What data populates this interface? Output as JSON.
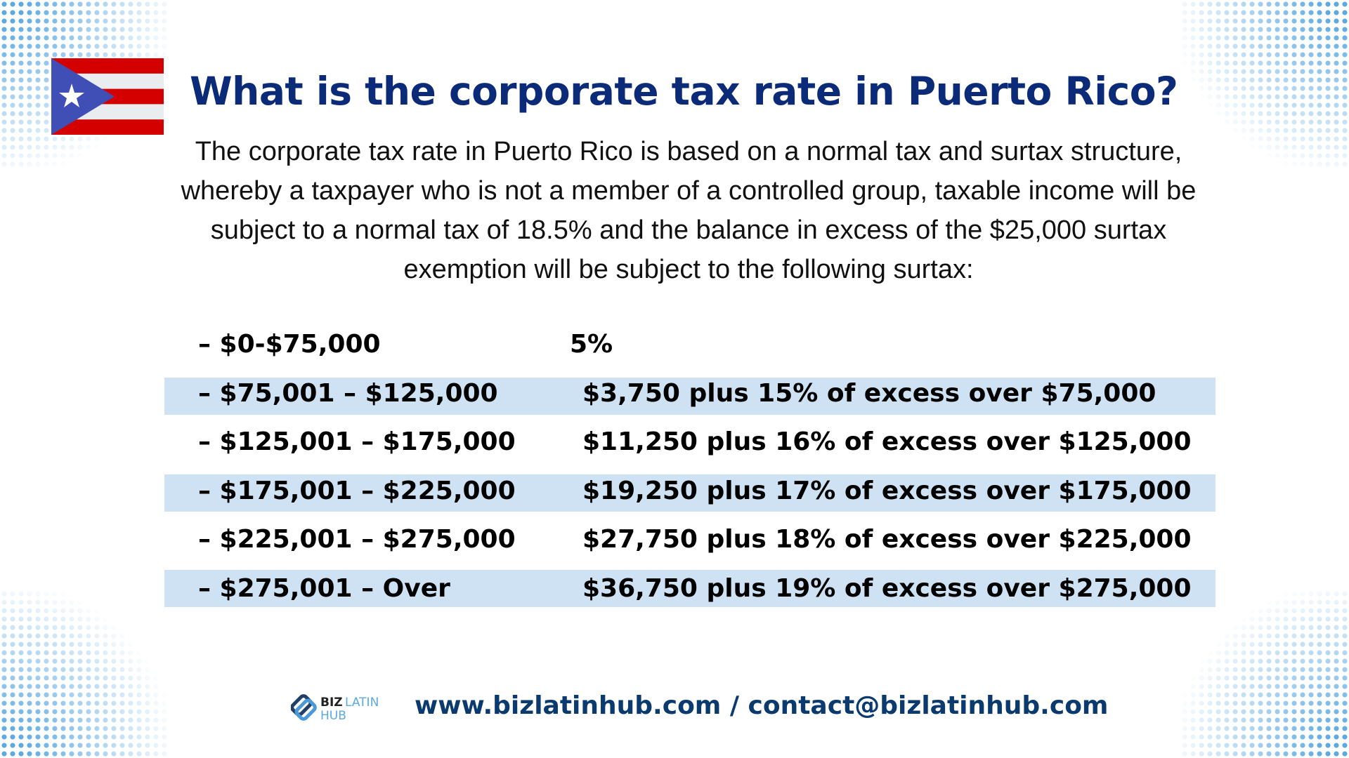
{
  "title": "What is the corporate tax rate in Puerto Rico?",
  "intro": "The corporate tax rate in Puerto Rico is based on a normal tax and surtax structure, whereby a taxpayer who is not a member of a controlled group, taxable income will be subject to a normal tax of 18.5% and the balance in excess of the $25,000 surtax exemption will be subject to the following surtax:",
  "surtax_table": [
    {
      "bracket": "– $0-$75,000",
      "surtax": "5%"
    },
    {
      "bracket": "– $75,001 – $125,000",
      "surtax": "$3,750 plus 15% of excess over $75,000"
    },
    {
      "bracket": "– $125,001 – $175,000",
      "surtax": "$11,250 plus 16% of excess over $125,000"
    },
    {
      "bracket": "– $175,001 – $225,000",
      "surtax": "$19,250 plus 17% of excess over $175,000"
    },
    {
      "bracket": "– $225,001 – $275,000",
      "surtax": "$27,750 plus 18% of excess over $225,000"
    },
    {
      "bracket": "– $275,001 – Over",
      "surtax": "$36,750 plus 19% of excess over $275,000"
    }
  ],
  "footer": {
    "logo_text": [
      "BIZ",
      "LATIN",
      "HUB"
    ],
    "contact": "www.bizlatinhub.com / contact@bizlatinhub.com"
  },
  "colors": {
    "title": "#0b2a78",
    "band": "#cfe2f3",
    "flag_red": "#d40000",
    "flag_blue": "#3f4fb5",
    "dots": "#5aa9e2"
  }
}
